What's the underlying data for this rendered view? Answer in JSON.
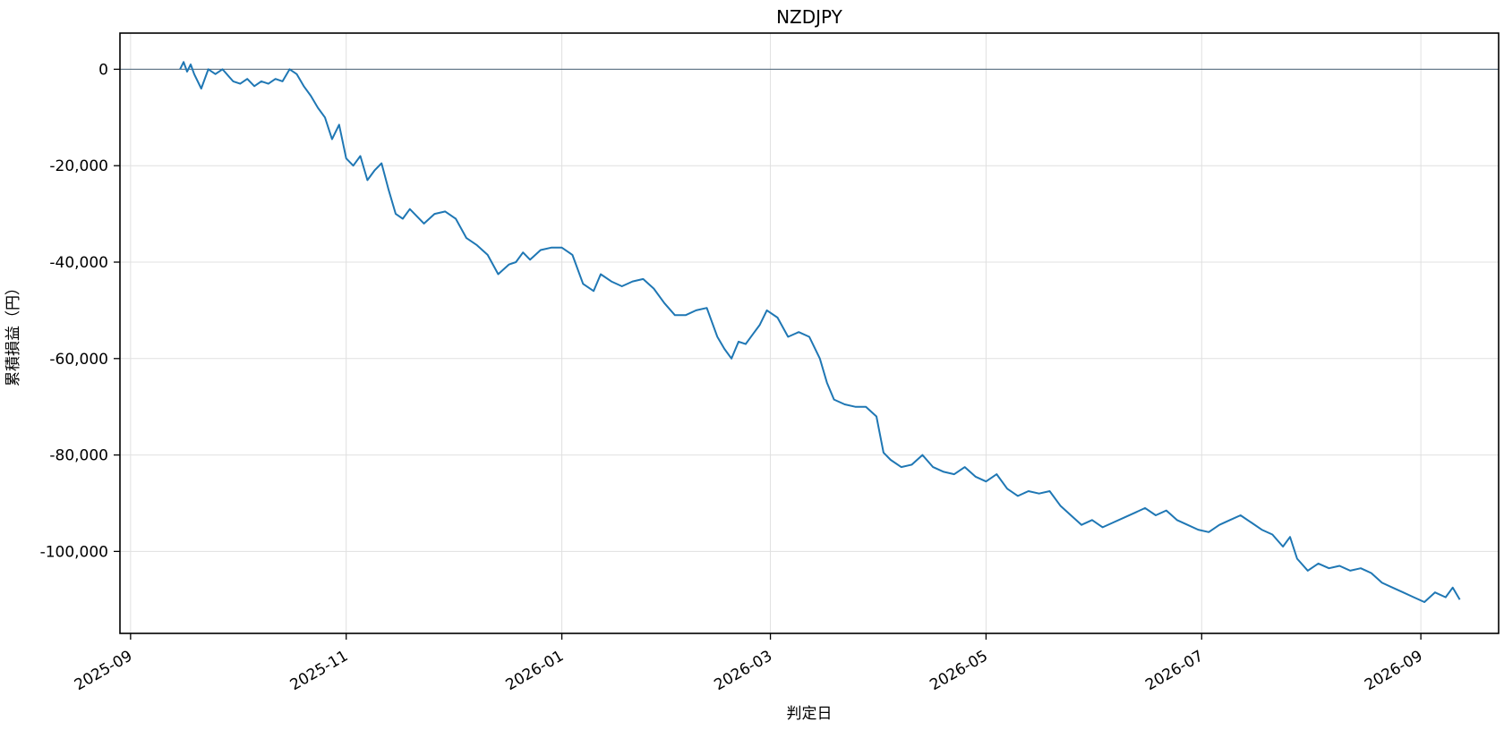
{
  "chart_data": {
    "type": "line",
    "title": "NZDJPY",
    "xlabel": "判定日",
    "ylabel": "累積損益（円）",
    "grid": true,
    "legend": "none",
    "x_range": [
      "2025-08-29",
      "2026-09-23"
    ],
    "ylim": [
      -117000,
      7500
    ],
    "x_ticks": [
      "2025-09-01",
      "2025-11-01",
      "2026-01-01",
      "2026-03-01",
      "2026-05-01",
      "2026-07-01",
      "2026-09-01"
    ],
    "x_tick_labels": [
      "2025-09",
      "2025-11",
      "2026-01",
      "2026-03",
      "2026-05",
      "2026-07",
      "2026-09"
    ],
    "y_ticks": [
      0,
      -20000,
      -40000,
      -60000,
      -80000,
      -100000
    ],
    "y_tick_labels": [
      "0",
      "-20,000",
      "-40,000",
      "-60,000",
      "-80,000",
      "-100,000"
    ],
    "reference_line_y": 0,
    "colors": {
      "line": "#1f77b4",
      "zero_line": "#4a6478",
      "grid": "#e0e0e0",
      "frame": "#000000"
    },
    "series": [
      {
        "x": [
          "2025-09-15",
          "2025-09-16",
          "2025-09-17",
          "2025-09-18",
          "2025-09-19",
          "2025-09-21",
          "2025-09-23",
          "2025-09-25",
          "2025-09-27",
          "2025-09-30",
          "2025-10-02",
          "2025-10-04",
          "2025-10-06",
          "2025-10-08",
          "2025-10-10",
          "2025-10-12",
          "2025-10-14",
          "2025-10-16",
          "2025-10-18",
          "2025-10-20",
          "2025-10-22",
          "2025-10-24",
          "2025-10-26",
          "2025-10-28",
          "2025-10-30",
          "2025-11-01",
          "2025-11-03",
          "2025-11-05",
          "2025-11-07",
          "2025-11-09",
          "2025-11-11",
          "2025-11-13",
          "2025-11-15",
          "2025-11-17",
          "2025-11-19",
          "2025-11-21",
          "2025-11-23",
          "2025-11-26",
          "2025-11-29",
          "2025-12-02",
          "2025-12-05",
          "2025-12-08",
          "2025-12-11",
          "2025-12-14",
          "2025-12-17",
          "2025-12-19",
          "2025-12-21",
          "2025-12-23",
          "2025-12-26",
          "2025-12-29",
          "2026-01-01",
          "2026-01-04",
          "2026-01-07",
          "2026-01-10",
          "2026-01-12",
          "2026-01-15",
          "2026-01-18",
          "2026-01-21",
          "2026-01-24",
          "2026-01-27",
          "2026-01-30",
          "2026-02-02",
          "2026-02-05",
          "2026-02-08",
          "2026-02-11",
          "2026-02-14",
          "2026-02-16",
          "2026-02-18",
          "2026-02-20",
          "2026-02-22",
          "2026-02-24",
          "2026-02-26",
          "2026-02-28",
          "2026-03-03",
          "2026-03-06",
          "2026-03-09",
          "2026-03-12",
          "2026-03-15",
          "2026-03-17",
          "2026-03-19",
          "2026-03-22",
          "2026-03-25",
          "2026-03-28",
          "2026-03-31",
          "2026-04-02",
          "2026-04-04",
          "2026-04-07",
          "2026-04-10",
          "2026-04-13",
          "2026-04-16",
          "2026-04-19",
          "2026-04-22",
          "2026-04-25",
          "2026-04-28",
          "2026-05-01",
          "2026-05-04",
          "2026-05-07",
          "2026-05-10",
          "2026-05-13",
          "2026-05-16",
          "2026-05-19",
          "2026-05-22",
          "2026-05-25",
          "2026-05-28",
          "2026-05-31",
          "2026-06-03",
          "2026-06-06",
          "2026-06-09",
          "2026-06-12",
          "2026-06-15",
          "2026-06-18",
          "2026-06-21",
          "2026-06-24",
          "2026-06-27",
          "2026-06-30",
          "2026-07-03",
          "2026-07-06",
          "2026-07-09",
          "2026-07-12",
          "2026-07-15",
          "2026-07-18",
          "2026-07-21",
          "2026-07-24",
          "2026-07-26",
          "2026-07-28",
          "2026-07-31",
          "2026-08-03",
          "2026-08-06",
          "2026-08-09",
          "2026-08-12",
          "2026-08-15",
          "2026-08-18",
          "2026-08-21",
          "2026-08-24",
          "2026-08-27",
          "2026-08-30",
          "2026-09-02",
          "2026-09-05",
          "2026-09-08",
          "2026-09-10",
          "2026-09-12"
        ],
        "y": [
          0,
          1500,
          -500,
          1000,
          -1000,
          -4000,
          0,
          -1000,
          0,
          -2500,
          -3000,
          -2000,
          -3500,
          -2500,
          -3000,
          -2000,
          -2500,
          0,
          -1000,
          -3500,
          -5500,
          -8000,
          -10000,
          -14500,
          -11500,
          -18500,
          -20000,
          -18000,
          -23000,
          -21000,
          -19500,
          -25000,
          -30000,
          -31000,
          -29000,
          -30500,
          -32000,
          -30000,
          -29500,
          -31000,
          -35000,
          -36500,
          -38500,
          -42500,
          -40500,
          -40000,
          -38000,
          -39500,
          -37500,
          -37000,
          -37000,
          -38500,
          -44500,
          -46000,
          -42500,
          -44000,
          -45000,
          -44000,
          -43500,
          -45500,
          -48500,
          -51000,
          -51000,
          -50000,
          -49500,
          -55500,
          -58000,
          -60000,
          -56500,
          -57000,
          -55000,
          -53000,
          -50000,
          -51500,
          -55500,
          -54500,
          -55500,
          -60000,
          -65000,
          -68500,
          -69500,
          -70000,
          -70000,
          -72000,
          -79500,
          -81000,
          -82500,
          -82000,
          -80000,
          -82500,
          -83500,
          -84000,
          -82500,
          -84500,
          -85500,
          -84000,
          -87000,
          -88500,
          -87500,
          -88000,
          -87500,
          -90500,
          -92500,
          -94500,
          -93500,
          -95000,
          -94000,
          -93000,
          -92000,
          -91000,
          -92500,
          -91500,
          -93500,
          -94500,
          -95500,
          -96000,
          -94500,
          -93500,
          -92500,
          -94000,
          -95500,
          -96500,
          -99000,
          -97000,
          -101500,
          -104000,
          -102500,
          -103500,
          -103000,
          -104000,
          -103500,
          -104500,
          -106500,
          -107500,
          -108500,
          -109500,
          -110500,
          -108500,
          -109500,
          -107500,
          -110000
        ]
      }
    ]
  }
}
